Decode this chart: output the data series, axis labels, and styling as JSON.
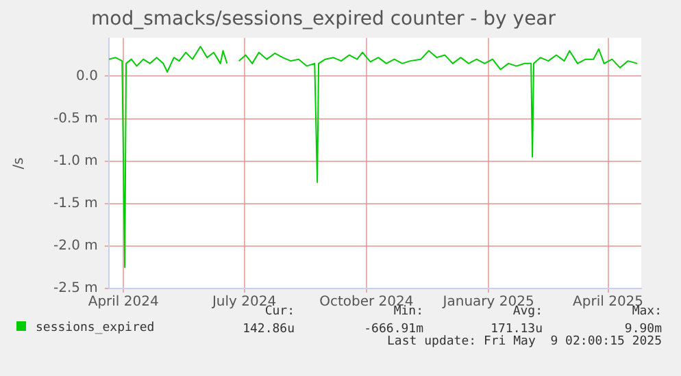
{
  "chart_data": {
    "type": "line",
    "title": "mod_smacks/sessions_expired counter - by year",
    "ylabel": "/s",
    "x": [
      "2024-03-21",
      "2024-03-26",
      "2024-03-31",
      "2024-04-02",
      "2024-04-03",
      "2024-04-07",
      "2024-04-11",
      "2024-04-16",
      "2024-04-21",
      "2024-04-26",
      "2024-05-01",
      "2024-05-04",
      "2024-05-09",
      "2024-05-13",
      "2024-05-18",
      "2024-05-23",
      "2024-05-29",
      "2024-06-03",
      "2024-06-08",
      "2024-06-13",
      "2024-06-15",
      "2024-06-18",
      "2024-06-22",
      "2024-06-27",
      "2024-07-02",
      "2024-07-07",
      "2024-07-12",
      "2024-07-18",
      "2024-07-24",
      "2024-07-30",
      "2024-08-05",
      "2024-08-11",
      "2024-08-17",
      "2024-08-23",
      "2024-08-25",
      "2024-08-26",
      "2024-08-31",
      "2024-09-06",
      "2024-09-12",
      "2024-09-18",
      "2024-09-24",
      "2024-09-28",
      "2024-10-04",
      "2024-10-10",
      "2024-10-16",
      "2024-10-22",
      "2024-10-28",
      "2024-11-03",
      "2024-11-11",
      "2024-11-17",
      "2024-11-23",
      "2024-11-29",
      "2024-12-05",
      "2024-12-11",
      "2024-12-17",
      "2024-12-23",
      "2024-12-29",
      "2025-01-04",
      "2025-01-10",
      "2025-01-16",
      "2025-01-22",
      "2025-01-28",
      "2025-02-02",
      "2025-02-03",
      "2025-02-04",
      "2025-02-09",
      "2025-02-15",
      "2025-02-21",
      "2025-02-27",
      "2025-03-03",
      "2025-03-09",
      "2025-03-15",
      "2025-03-21",
      "2025-03-25",
      "2025-03-29",
      "2025-04-04",
      "2025-04-10",
      "2025-04-16",
      "2025-04-23"
    ],
    "series": [
      {
        "name": "sessions_expired",
        "color": "#00cc00",
        "values": [
          0.2,
          0.22,
          0.18,
          -2.25,
          0.15,
          0.2,
          0.12,
          0.2,
          0.15,
          0.22,
          0.15,
          0.05,
          0.22,
          0.18,
          0.28,
          0.2,
          0.35,
          0.22,
          0.28,
          0.15,
          0.3,
          0.15,
          null,
          0.18,
          0.25,
          0.15,
          0.28,
          0.2,
          0.27,
          0.22,
          0.18,
          0.2,
          0.12,
          0.15,
          -1.25,
          0.15,
          0.2,
          0.22,
          0.18,
          0.25,
          0.2,
          0.28,
          0.17,
          0.22,
          0.15,
          0.2,
          0.15,
          0.18,
          0.2,
          0.3,
          0.22,
          0.25,
          0.15,
          0.22,
          0.15,
          0.2,
          0.15,
          0.2,
          0.08,
          0.15,
          0.12,
          0.15,
          0.15,
          -0.95,
          0.15,
          0.22,
          0.18,
          0.25,
          0.18,
          0.3,
          0.15,
          0.2,
          0.2,
          0.32,
          0.15,
          0.2,
          0.1,
          0.18,
          0.15
        ]
      }
    ],
    "xlim": [
      "2024-03-21",
      "2025-04-26"
    ],
    "xticks": [
      {
        "value": "2024-04-01",
        "label": "April 2024"
      },
      {
        "value": "2024-07-01",
        "label": "July 2024"
      },
      {
        "value": "2024-10-01",
        "label": "October 2024"
      },
      {
        "value": "2025-01-01",
        "label": "January 2025"
      },
      {
        "value": "2025-04-01",
        "label": "April 2025"
      }
    ],
    "ylim": [
      -2.5,
      0.45
    ],
    "yticks": [
      {
        "value": -2.5,
        "label": "-2.5 m"
      },
      {
        "value": -2.0,
        "label": "-2.0 m"
      },
      {
        "value": -1.5,
        "label": "-1.5 m"
      },
      {
        "value": -1.0,
        "label": "-1.0 m"
      },
      {
        "value": -0.5,
        "label": "-0.5 m"
      },
      {
        "value": 0,
        "label": "0.0"
      }
    ],
    "grid": true,
    "legend": "bottom left",
    "marker": "none",
    "line_style": "solid",
    "annotations": [
      "Cur: 142.86u",
      "Min: -666.91m",
      "Avg: 171.13u",
      "Max: 9.90m",
      "Last update: Fri May  9 02:00:15 2025"
    ]
  }
}
